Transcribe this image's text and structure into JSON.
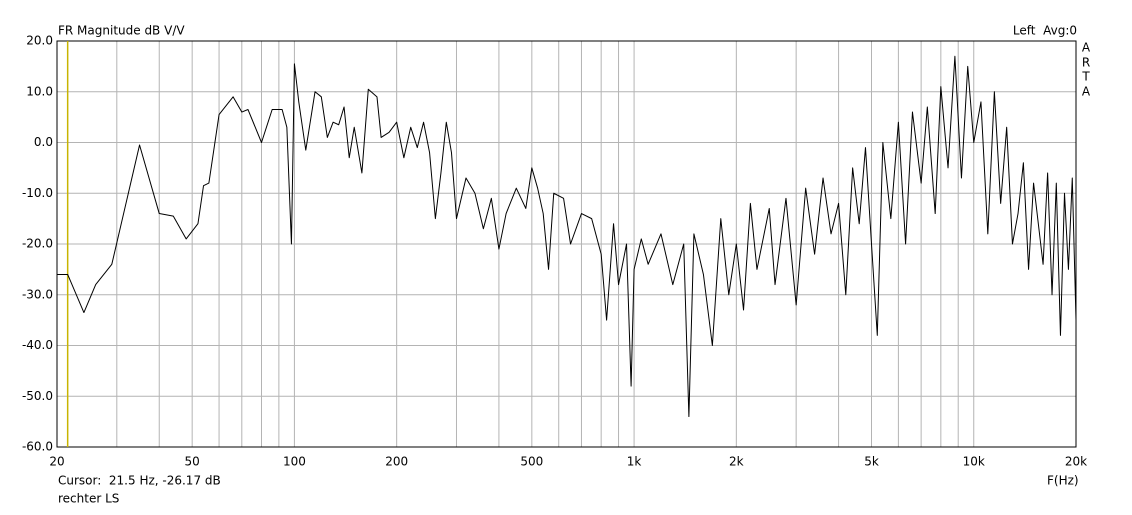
{
  "chart_data": {
    "type": "line",
    "title": "FR Magnitude dB V/V",
    "status": "Left  Avg:0",
    "brand": [
      "A",
      "R",
      "T",
      "A"
    ],
    "x_label": "F(Hz)",
    "cursor": {
      "x": 21.5,
      "label": "Cursor:  21.5 Hz, -26.17 dB",
      "color": "#c8b400"
    },
    "legend_text": "rechter LS",
    "log_x": true,
    "grid": true,
    "xlim": [
      20,
      20000
    ],
    "ylim": [
      -60,
      20
    ],
    "xticks": [
      20,
      50,
      100,
      200,
      500,
      {
        "value": 1000,
        "label": "1k"
      },
      {
        "value": 2000,
        "label": "2k"
      },
      {
        "value": 5000,
        "label": "5k"
      },
      {
        "value": 10000,
        "label": "10k"
      },
      {
        "value": 20000,
        "label": "20k"
      }
    ],
    "xgrid_minor": [
      30,
      40,
      60,
      70,
      80,
      90,
      300,
      400,
      600,
      700,
      800,
      900,
      3000,
      4000,
      6000,
      7000,
      8000,
      9000
    ],
    "yticks": [
      {
        "value": 20,
        "label": "20.0"
      },
      {
        "value": 10,
        "label": "10.0"
      },
      {
        "value": 0,
        "label": "0.0"
      },
      {
        "value": -10,
        "label": "-10.0"
      },
      {
        "value": -20,
        "label": "-20.0"
      },
      {
        "value": -30,
        "label": "-30.0"
      },
      {
        "value": -40,
        "label": "-40.0"
      },
      {
        "value": -50,
        "label": "-50.0"
      },
      {
        "value": -60,
        "label": "-60.0"
      }
    ],
    "x": [
      20,
      21.5,
      24,
      26,
      29,
      35,
      40,
      44,
      48,
      52,
      54,
      56,
      60,
      66,
      70,
      73,
      80,
      86,
      92,
      95,
      98,
      100,
      103,
      108,
      115,
      120,
      125,
      130,
      135,
      140,
      145,
      150,
      158,
      165,
      175,
      180,
      190,
      200,
      210,
      220,
      230,
      240,
      250,
      260,
      270,
      280,
      290,
      300,
      320,
      340,
      360,
      380,
      400,
      420,
      450,
      480,
      500,
      520,
      540,
      560,
      580,
      620,
      650,
      700,
      750,
      800,
      830,
      870,
      900,
      950,
      980,
      1000,
      1050,
      1100,
      1200,
      1300,
      1400,
      1450,
      1500,
      1600,
      1700,
      1800,
      1900,
      2000,
      2100,
      2200,
      2300,
      2500,
      2600,
      2800,
      3000,
      3200,
      3400,
      3600,
      3800,
      4000,
      4200,
      4400,
      4600,
      4800,
      5000,
      5200,
      5400,
      5700,
      6000,
      6300,
      6600,
      7000,
      7300,
      7700,
      8000,
      8400,
      8800,
      9200,
      9600,
      10000,
      10500,
      11000,
      11500,
      12000,
      12500,
      13000,
      13500,
      14000,
      14500,
      15000,
      16000,
      16500,
      17000,
      17500,
      18000,
      18500,
      19000,
      19500,
      20000
    ],
    "series": [
      {
        "color": "#000000",
        "values": [
          -26,
          -26,
          -33.5,
          -28,
          -24,
          -0.5,
          -14,
          -14.5,
          -19,
          -16,
          -8.5,
          -8,
          5.5,
          9,
          6,
          6.5,
          0,
          6.5,
          6.5,
          3,
          -20,
          15.5,
          8,
          -1.5,
          10,
          9,
          1,
          4,
          3.5,
          7,
          -3,
          3,
          -6,
          10.5,
          9,
          1,
          2,
          4,
          -3,
          3,
          -1,
          4,
          -2,
          -15,
          -6,
          4,
          -2,
          -15,
          -7,
          -10,
          -17,
          -11,
          -21,
          -14,
          -9,
          -13,
          -5,
          -9,
          -14,
          -25,
          -10,
          -11,
          -20,
          -14,
          -15,
          -22,
          -35,
          -16,
          -28,
          -20,
          -48,
          -25,
          -19,
          -24,
          -18,
          -28,
          -20,
          -54,
          -18,
          -26,
          -40,
          -15,
          -30,
          -20,
          -33,
          -12,
          -25,
          -13,
          -28,
          -11,
          -32,
          -9,
          -22,
          -7,
          -18,
          -12,
          -30,
          -5,
          -16,
          -1,
          -20,
          -38,
          0,
          -15,
          4,
          -20,
          6,
          -8,
          7,
          -14,
          11,
          -5,
          17,
          -7,
          15,
          0,
          8,
          -18,
          10,
          -12,
          3,
          -20,
          -14,
          -4,
          -25,
          -8,
          -24,
          -6,
          -30,
          -8,
          -38,
          -10,
          -25,
          -7,
          -35
        ]
      }
    ]
  }
}
